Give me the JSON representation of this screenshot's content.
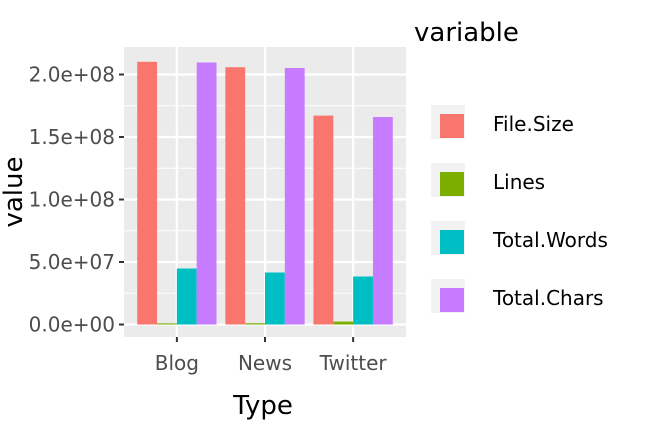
{
  "chart_data": {
    "type": "bar",
    "title": "",
    "xlabel": "Type",
    "ylabel": "value",
    "categories": [
      "Blog",
      "News",
      "Twitter"
    ],
    "series": [
      {
        "name": "File.Size",
        "values": [
          210160014,
          205811889,
          167105338
        ],
        "color": "#F8766D"
      },
      {
        "name": "Lines",
        "values": [
          899288,
          1010242,
          2360148
        ],
        "color": "#7CAE00"
      },
      {
        "name": "Total.Words",
        "values": [
          44800000,
          41600000,
          38400000
        ],
        "color": "#00BFC4"
      },
      {
        "name": "Total.Chars",
        "values": [
          209600000,
          205200000,
          166000000
        ],
        "color": "#C77CFF"
      }
    ],
    "ylim": [
      -10000000,
      222000000
    ],
    "y_ticks": [
      0,
      50000000,
      100000000,
      150000000,
      200000000
    ],
    "y_tick_labels": [
      "0.0e+00",
      "5.0e+07",
      "1.0e+08",
      "1.5e+08",
      "2.0e+08"
    ],
    "legend": {
      "title": "variable",
      "placement": "right"
    },
    "grid": true,
    "panel_background": "#EBEBEB"
  }
}
